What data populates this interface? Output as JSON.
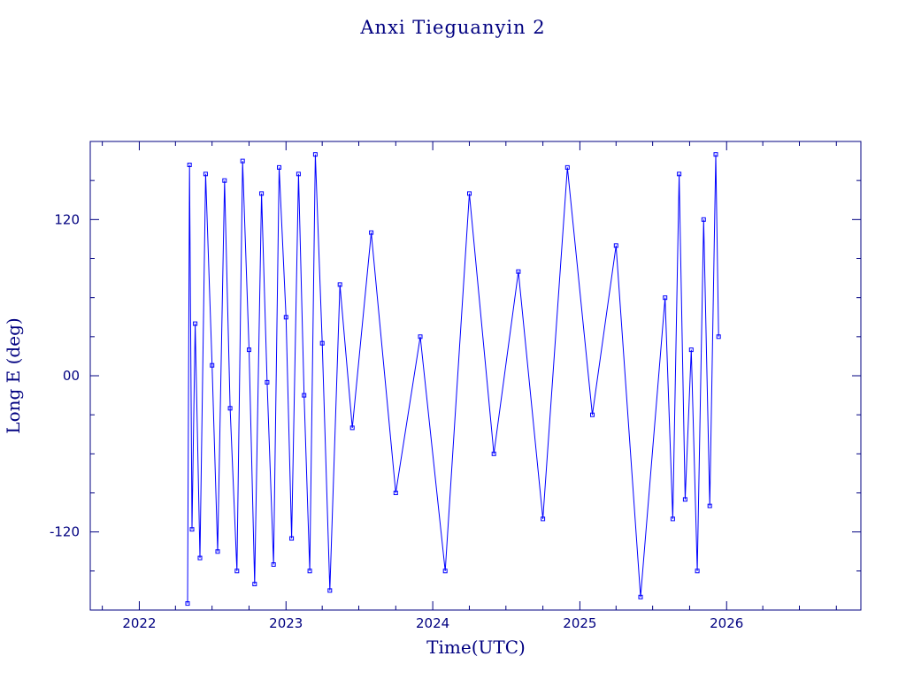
{
  "chart_data": {
    "type": "scatter",
    "title": "Anxi Tieguanyin 2",
    "xlabel": "Time(UTC)",
    "ylabel": "Long E (deg)",
    "xlim": [
      "2021-09-01",
      "2026-12-01"
    ],
    "ylim": [
      -180,
      180
    ],
    "x_ticks": [
      "2022",
      "2023",
      "2024",
      "2025",
      "2026"
    ],
    "y_ticks": [
      "120",
      "00",
      "-120"
    ],
    "y_tick_values": [
      120,
      0,
      -120
    ],
    "grid": false,
    "colors": {
      "series": "#0000ff",
      "axes": "#000080"
    },
    "series": [
      {
        "values": [
          [
            "2022-05-01",
            -175
          ],
          [
            "2022-05-06",
            162
          ],
          [
            "2022-05-12",
            -118
          ],
          [
            "2022-05-20",
            40
          ],
          [
            "2022-06-01",
            -140
          ],
          [
            "2022-06-15",
            155
          ],
          [
            "2022-07-01",
            8
          ],
          [
            "2022-07-15",
            -135
          ],
          [
            "2022-08-01",
            150
          ],
          [
            "2022-08-15",
            -25
          ],
          [
            "2022-09-01",
            -150
          ],
          [
            "2022-09-15",
            165
          ],
          [
            "2022-10-01",
            20
          ],
          [
            "2022-10-15",
            -160
          ],
          [
            "2022-11-01",
            140
          ],
          [
            "2022-11-15",
            -5
          ],
          [
            "2022-12-01",
            -145
          ],
          [
            "2022-12-15",
            160
          ],
          [
            "2023-01-01",
            45
          ],
          [
            "2023-01-15",
            -125
          ],
          [
            "2023-02-01",
            155
          ],
          [
            "2023-02-15",
            -15
          ],
          [
            "2023-03-01",
            -150
          ],
          [
            "2023-03-15",
            170
          ],
          [
            "2023-04-01",
            25
          ],
          [
            "2023-04-20",
            -165
          ],
          [
            "2023-05-15",
            70
          ],
          [
            "2023-06-15",
            -40
          ],
          [
            "2023-08-01",
            110
          ],
          [
            "2023-10-01",
            -90
          ],
          [
            "2023-12-01",
            30
          ],
          [
            "2024-02-01",
            -150
          ],
          [
            "2024-04-01",
            140
          ],
          [
            "2024-06-01",
            -60
          ],
          [
            "2024-08-01",
            80
          ],
          [
            "2024-10-01",
            -110
          ],
          [
            "2024-12-01",
            160
          ],
          [
            "2025-02-01",
            -30
          ],
          [
            "2025-04-01",
            100
          ],
          [
            "2025-06-01",
            -170
          ],
          [
            "2025-08-01",
            60
          ],
          [
            "2025-08-20",
            -110
          ],
          [
            "2025-09-05",
            155
          ],
          [
            "2025-09-20",
            -95
          ],
          [
            "2025-10-05",
            20
          ],
          [
            "2025-10-20",
            -150
          ],
          [
            "2025-11-05",
            120
          ],
          [
            "2025-11-20",
            -100
          ],
          [
            "2025-12-05",
            170
          ],
          [
            "2025-12-12",
            30
          ]
        ]
      }
    ]
  }
}
